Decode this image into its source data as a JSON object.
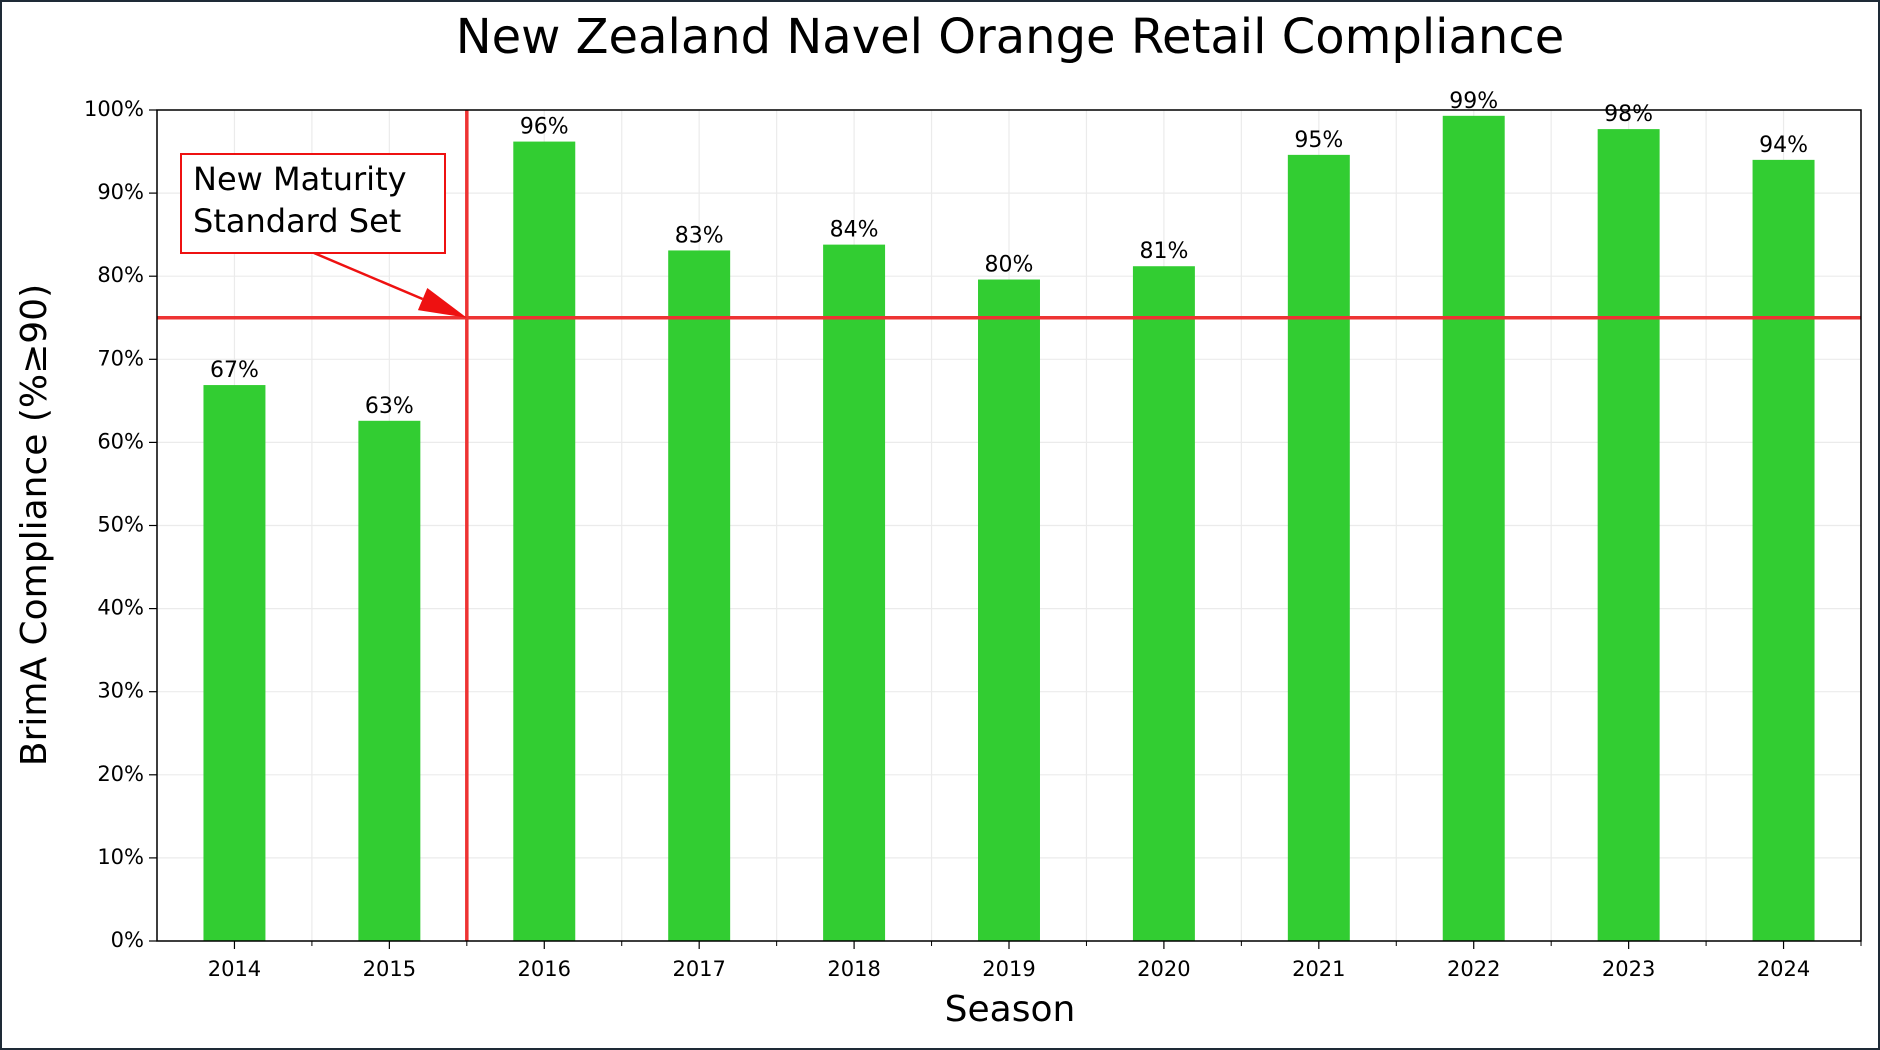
{
  "chart_data": {
    "type": "bar",
    "title": "New Zealand Navel Orange Retail Compliance",
    "x_label": "Season",
    "y_label": "BrimA Compliance (%≥90)",
    "categories": [
      "2014",
      "2015",
      "2016",
      "2017",
      "2018",
      "2019",
      "2020",
      "2021",
      "2022",
      "2023",
      "2024"
    ],
    "values": [
      66.9,
      62.6,
      96.2,
      83.1,
      83.8,
      79.6,
      81.2,
      94.6,
      99.3,
      97.7,
      94.0
    ],
    "value_labels": [
      "67%",
      "63%",
      "96%",
      "83%",
      "84%",
      "80%",
      "81%",
      "95%",
      "99%",
      "98%",
      "94%"
    ],
    "color": "#32cd32",
    "ylim": [
      0,
      100
    ],
    "yticks": [
      {
        "value": 0,
        "label": "0%"
      },
      {
        "value": 10,
        "label": "10%"
      },
      {
        "value": 20,
        "label": "20%"
      },
      {
        "value": 30,
        "label": "30%"
      },
      {
        "value": 40,
        "label": "40%"
      },
      {
        "value": 50,
        "label": "50%"
      },
      {
        "value": 60,
        "label": "60%"
      },
      {
        "value": 70,
        "label": "70%"
      },
      {
        "value": 80,
        "label": "80%"
      },
      {
        "value": 90,
        "label": "90%"
      },
      {
        "value": 100,
        "label": "100%"
      }
    ],
    "grid": true,
    "threshold": 75,
    "threshold_color": "#ee3333",
    "marker_category": "2016",
    "annotation": [
      "New Maturity",
      "Standard Set"
    ]
  }
}
